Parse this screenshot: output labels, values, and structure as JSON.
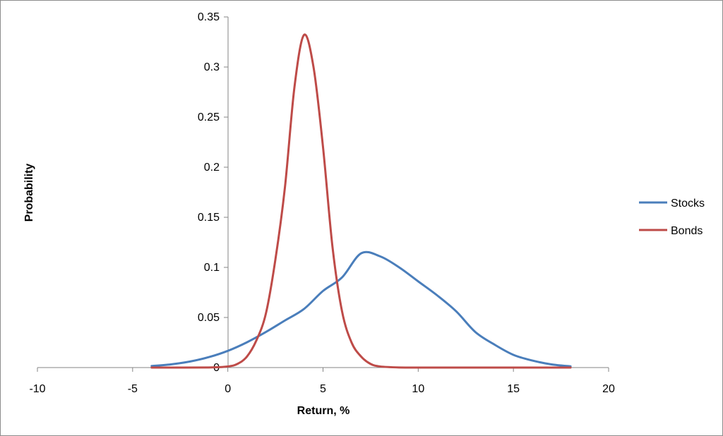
{
  "chart_data": {
    "type": "line",
    "title": "",
    "xlabel": "Return, %",
    "ylabel": "Probability",
    "xlim": [
      -10,
      20
    ],
    "ylim": [
      0,
      0.35
    ],
    "x_ticks": [
      "-10",
      "-5",
      "0",
      "5",
      "10",
      "15",
      "20"
    ],
    "y_ticks": [
      "0",
      "0.05",
      "0.1",
      "0.15",
      "0.2",
      "0.25",
      "0.3",
      "0.35"
    ],
    "grid": false,
    "legend_position": "right",
    "series": [
      {
        "name": "Stocks",
        "color": "#4a7ebb",
        "x": [
          -4,
          -3,
          -2,
          -1,
          0,
          1,
          2,
          3,
          4,
          5,
          6,
          7,
          8,
          9,
          10,
          11,
          12,
          13,
          14,
          15,
          16,
          17,
          18
        ],
        "y": [
          0.0016,
          0.0032,
          0.006,
          0.0104,
          0.0167,
          0.0252,
          0.0355,
          0.047,
          0.0585,
          0.0765,
          0.09,
          0.114,
          0.111,
          0.1,
          0.086,
          0.072,
          0.056,
          0.0355,
          0.023,
          0.0127,
          0.007,
          0.0032,
          0.0012
        ]
      },
      {
        "name": "Bonds",
        "color": "#be4b48",
        "x": [
          -4,
          -1,
          0,
          0.5,
          1,
          1.5,
          2,
          2.5,
          3,
          3.5,
          4,
          4.5,
          5,
          5.5,
          6,
          6.5,
          7,
          7.5,
          8,
          9,
          10,
          12,
          15,
          18
        ],
        "y": [
          0,
          0.0001,
          0.0011,
          0.0036,
          0.0109,
          0.0271,
          0.054,
          0.108,
          0.18,
          0.28,
          0.332,
          0.3,
          0.22,
          0.12,
          0.056,
          0.025,
          0.011,
          0.0036,
          0.0011,
          0.0001,
          0,
          0,
          0,
          0
        ]
      }
    ]
  }
}
